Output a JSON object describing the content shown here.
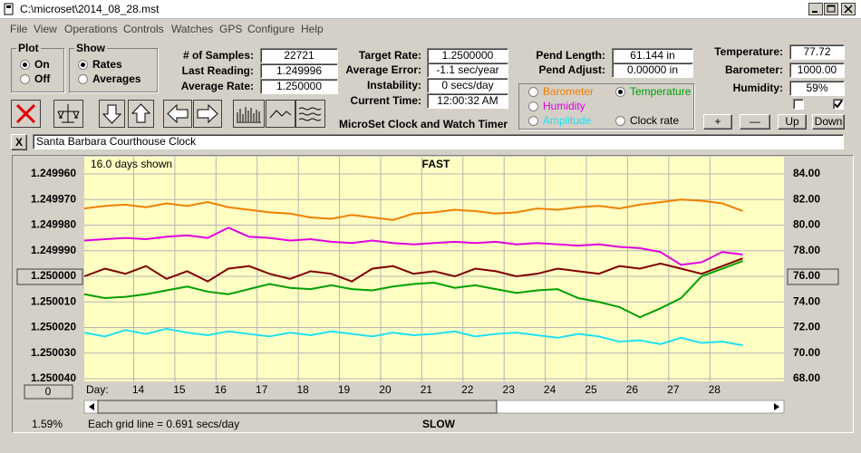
{
  "window": {
    "title": "C:\\microset\\2014_08_28.mst"
  },
  "menu": [
    "File",
    "View",
    "Operations",
    "Controls",
    "Watches",
    "GPS",
    "Configure",
    "Help"
  ],
  "plot_group": {
    "title": "Plot",
    "options": [
      "On",
      "Off"
    ],
    "selected": 0
  },
  "show_group": {
    "title": "Show",
    "options": [
      "Rates",
      "Averages"
    ],
    "selected": 0
  },
  "readings": [
    {
      "label": "# of Samples:",
      "value": "22721"
    },
    {
      "label": "Last Reading:",
      "value": "1.249996"
    },
    {
      "label": "Average Rate:",
      "value": "1.250000"
    }
  ],
  "timing": [
    {
      "label": "Target Rate:",
      "value": "1.2500000"
    },
    {
      "label": "Average Error:",
      "value": "-1.1 sec/year"
    },
    {
      "label": "Instability:",
      "value": "0 secs/day"
    },
    {
      "label": "Current Time:",
      "value": "12:00:32 AM"
    }
  ],
  "app_name": "MicroSet Clock and Watch Timer",
  "pendulum": [
    {
      "label": "Pend Length:",
      "value": "61.144 in"
    },
    {
      "label": "Pend Adjust:",
      "value": "0.00000 in"
    }
  ],
  "environment": [
    {
      "label": "Temperature:",
      "value": "77.72"
    },
    {
      "label": "Barometer:",
      "value": "1000.00"
    },
    {
      "label": "Humidity:",
      "value": "59%"
    }
  ],
  "checkboxes": [
    false,
    true
  ],
  "buttons": [
    "+",
    "—",
    "Up",
    "Down"
  ],
  "close_label": "X",
  "clock_name": "Santa Barbara Courthouse Clock",
  "selected_series": 1,
  "chart_data": {
    "type": "line",
    "header": "16.0 days shown",
    "top_label": "FAST",
    "bottom_label": "SLOW",
    "x_label": "Day:",
    "footer": "Each grid line = 0.691 secs/day",
    "status": "1.59%",
    "offset_value": "0",
    "grid": true,
    "xlim": [
      12.8,
      29.8
    ],
    "xticks": [
      14,
      15,
      16,
      17,
      18,
      19,
      20,
      21,
      22,
      23,
      24,
      25,
      26,
      27,
      28
    ],
    "ylim": [
      1.25004,
      1.24996
    ],
    "yticks": [
      {
        "value": 1.24996,
        "label": "1.249960"
      },
      {
        "value": 1.24997,
        "label": "1.249970"
      },
      {
        "value": 1.24998,
        "label": "1.249980"
      },
      {
        "value": 1.24999,
        "label": "1.249990"
      },
      {
        "value": 1.25,
        "label": "1.250000"
      },
      {
        "value": 1.25001,
        "label": "1.250010"
      },
      {
        "value": 1.25002,
        "label": "1.250020"
      },
      {
        "value": 1.25003,
        "label": "1.250030"
      },
      {
        "value": 1.25004,
        "label": "1.250040"
      }
    ],
    "y2lim": [
      68,
      84
    ],
    "y2ticks": [
      {
        "value": 84,
        "label": "84.00"
      },
      {
        "value": 82,
        "label": "82.00"
      },
      {
        "value": 80,
        "label": "80.00"
      },
      {
        "value": 78,
        "label": "78.00"
      },
      {
        "value": 76,
        "label": "76.00"
      },
      {
        "value": 74,
        "label": "74.00"
      },
      {
        "value": 72,
        "label": "72.00"
      },
      {
        "value": 70,
        "label": "70.00"
      },
      {
        "value": 68,
        "label": "68.00"
      }
    ],
    "x": [
      12.8,
      13.3,
      13.8,
      14.3,
      14.8,
      15.3,
      15.8,
      16.3,
      16.8,
      17.3,
      17.8,
      18.3,
      18.8,
      19.3,
      19.8,
      20.3,
      20.8,
      21.3,
      21.8,
      22.3,
      22.8,
      23.3,
      23.8,
      24.3,
      24.8,
      25.3,
      25.8,
      26.3,
      26.8,
      27.3,
      27.8,
      28.3,
      28.8
    ],
    "series": [
      {
        "name": "Barometer",
        "color": "#f08000",
        "axis": "y2",
        "values": [
          81.3,
          81.5,
          81.6,
          81.4,
          81.7,
          81.5,
          81.8,
          81.4,
          81.2,
          81.0,
          80.9,
          80.6,
          80.5,
          80.8,
          80.6,
          80.4,
          80.9,
          81.0,
          81.2,
          81.1,
          80.9,
          81.0,
          81.3,
          81.2,
          81.4,
          81.5,
          81.3,
          81.6,
          81.8,
          82.0,
          81.9,
          81.7,
          81.1
        ]
      },
      {
        "name": "Temperature",
        "color": "#00a000",
        "axis": "y2",
        "values": [
          74.6,
          74.3,
          74.4,
          74.6,
          74.9,
          75.2,
          74.8,
          74.6,
          75.0,
          75.4,
          75.1,
          75.0,
          75.3,
          75.0,
          74.9,
          75.2,
          75.4,
          75.5,
          75.1,
          75.3,
          75.0,
          74.7,
          74.9,
          75.0,
          74.3,
          74.0,
          73.6,
          72.8,
          73.5,
          74.3,
          76.0,
          76.6,
          77.2
        ]
      },
      {
        "name": "Humidity",
        "color": "#e000e0",
        "axis": "y2",
        "values": [
          78.8,
          78.9,
          79.0,
          78.9,
          79.1,
          79.2,
          79.0,
          79.8,
          79.1,
          79.0,
          78.8,
          78.9,
          78.7,
          78.6,
          78.8,
          78.6,
          78.5,
          78.6,
          78.7,
          78.6,
          78.7,
          78.5,
          78.6,
          78.5,
          78.4,
          78.5,
          78.3,
          78.2,
          77.9,
          76.9,
          77.1,
          77.9,
          77.7
        ]
      },
      {
        "name": "Amplitude",
        "color": "#20e0f0",
        "axis": "y2",
        "values": [
          71.6,
          71.3,
          71.8,
          71.5,
          71.9,
          71.6,
          71.4,
          71.7,
          71.5,
          71.3,
          71.6,
          71.4,
          71.7,
          71.5,
          71.3,
          71.6,
          71.4,
          71.5,
          71.7,
          71.3,
          71.5,
          71.6,
          71.4,
          71.2,
          71.5,
          71.3,
          70.9,
          71.0,
          70.7,
          71.2,
          70.8,
          70.9,
          70.6
        ]
      },
      {
        "name": "Clock rate",
        "color": "#800000",
        "axis": "y",
        "values": [
          1.25,
          1.249997,
          1.249999,
          1.249996,
          1.250001,
          1.249998,
          1.250002,
          1.249997,
          1.249996,
          1.249999,
          1.250001,
          1.249998,
          1.249999,
          1.250002,
          1.249997,
          1.249996,
          1.249999,
          1.249998,
          1.25,
          1.249997,
          1.249998,
          1.25,
          1.249999,
          1.249997,
          1.249998,
          1.249999,
          1.249996,
          1.249997,
          1.249995,
          1.249997,
          1.249999,
          1.249996,
          1.249993
        ]
      }
    ]
  }
}
